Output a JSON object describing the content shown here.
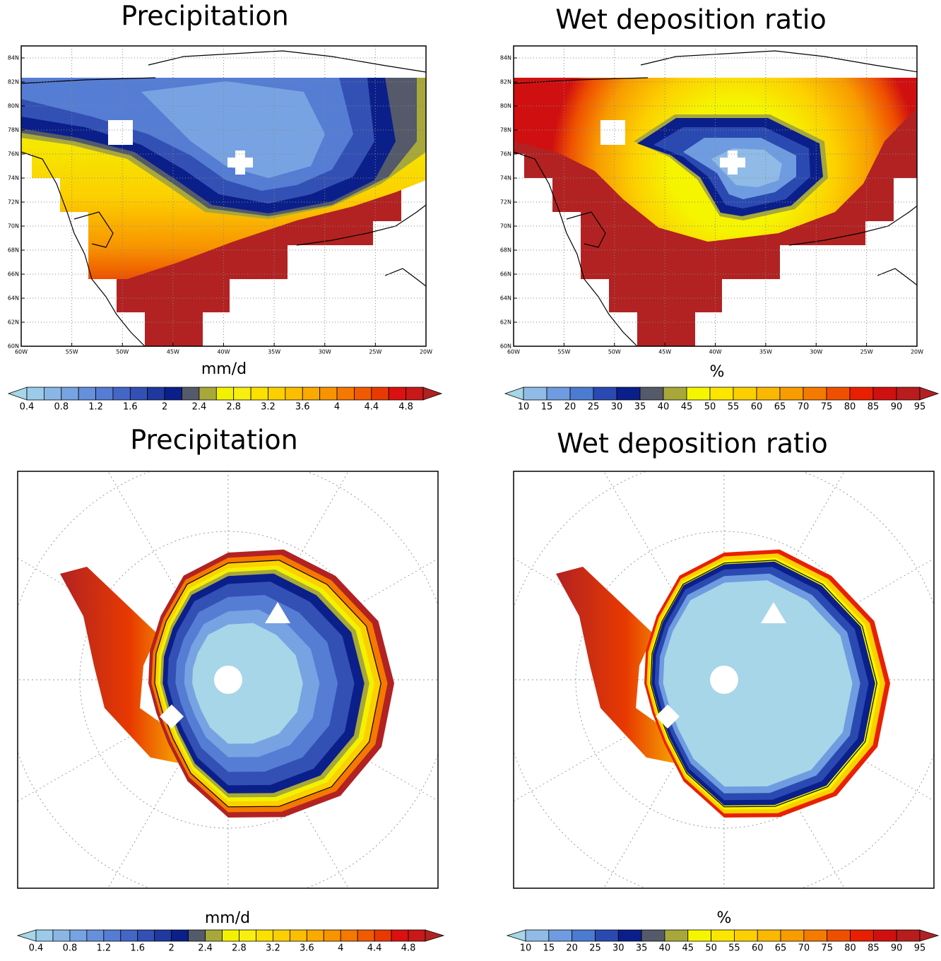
{
  "chart_data": [
    {
      "type": "map",
      "title": "Precipitation",
      "units": "mm/d",
      "xlim": [
        -60,
        -20
      ],
      "ylim": [
        60,
        85
      ],
      "xticks": [
        {
          "value": -60,
          "label": "60W"
        },
        {
          "value": -55,
          "label": "55W"
        },
        {
          "value": -50,
          "label": "50W"
        },
        {
          "value": -45,
          "label": "45W"
        },
        {
          "value": -40,
          "label": "40W"
        },
        {
          "value": -35,
          "label": "35W"
        },
        {
          "value": -30,
          "label": "30W"
        },
        {
          "value": -25,
          "label": "25W"
        },
        {
          "value": -20,
          "label": "20W"
        }
      ],
      "yticks": [
        {
          "value": 60,
          "label": "60N"
        },
        {
          "value": 62,
          "label": "62N"
        },
        {
          "value": 64,
          "label": "64N"
        },
        {
          "value": 66,
          "label": "66N"
        },
        {
          "value": 68,
          "label": "68N"
        },
        {
          "value": 70,
          "label": "70N"
        },
        {
          "value": 72,
          "label": "72N"
        },
        {
          "value": 74,
          "label": "74N"
        },
        {
          "value": 76,
          "label": "76N"
        },
        {
          "value": 78,
          "label": "78N"
        },
        {
          "value": 80,
          "label": "80N"
        },
        {
          "value": 82,
          "label": "82N"
        },
        {
          "value": 84,
          "label": "84N"
        }
      ],
      "grid": true,
      "colorbar": {
        "lim": [
          0.4,
          5.0
        ],
        "ticks": [
          0.4,
          0.8,
          1.2,
          1.6,
          2,
          2.4,
          2.8,
          3.2,
          3.6,
          4,
          4.4,
          4.8
        ],
        "colors": [
          "#a6d6e8",
          "#9ccbe9",
          "#8ab6e6",
          "#78a3e2",
          "#6690dc",
          "#557dd4",
          "#4467c6",
          "#3350b4",
          "#2039a0",
          "#0b1f8a",
          "#545a6a",
          "#a8a83a",
          "#f2f200",
          "#f8ee10",
          "#fbe000",
          "#fcd000",
          "#fcbe00",
          "#fbaa00",
          "#f89400",
          "#f57800",
          "#f05a00",
          "#e83a00",
          "#dc1010",
          "#c81818",
          "#b22222"
        ]
      }
    },
    {
      "type": "map",
      "title": "Wet deposition ratio",
      "units": "%",
      "xlim": [
        -60,
        -20
      ],
      "ylim": [
        60,
        85
      ],
      "xticks": [
        {
          "value": -60,
          "label": "60W"
        },
        {
          "value": -55,
          "label": "55W"
        },
        {
          "value": -50,
          "label": "50W"
        },
        {
          "value": -45,
          "label": "45W"
        },
        {
          "value": -40,
          "label": "40W"
        },
        {
          "value": -35,
          "label": "35W"
        },
        {
          "value": -30,
          "label": "30W"
        },
        {
          "value": -25,
          "label": "25W"
        },
        {
          "value": -20,
          "label": "20W"
        }
      ],
      "yticks": [
        {
          "value": 60,
          "label": "60N"
        },
        {
          "value": 62,
          "label": "62N"
        },
        {
          "value": 64,
          "label": "64N"
        },
        {
          "value": 66,
          "label": "66N"
        },
        {
          "value": 68,
          "label": "68N"
        },
        {
          "value": 70,
          "label": "70N"
        },
        {
          "value": 72,
          "label": "72N"
        },
        {
          "value": 74,
          "label": "74N"
        },
        {
          "value": 76,
          "label": "76N"
        },
        {
          "value": 78,
          "label": "78N"
        },
        {
          "value": 80,
          "label": "80N"
        },
        {
          "value": 82,
          "label": "82N"
        },
        {
          "value": 84,
          "label": "84N"
        }
      ],
      "grid": true,
      "colorbar": {
        "lim": [
          10,
          95
        ],
        "ticks": [
          10,
          15,
          20,
          25,
          30,
          35,
          40,
          45,
          50,
          55,
          60,
          65,
          70,
          75,
          80,
          85,
          90,
          95
        ],
        "colors": [
          "#a6d6e8",
          "#8fbbe6",
          "#6f9ce0",
          "#4c7bd2",
          "#2a4ab2",
          "#0b1f8a",
          "#545a6a",
          "#a8a83a",
          "#f5f500",
          "#fce600",
          "#fcd000",
          "#fbb800",
          "#f89c00",
          "#f57a00",
          "#ef5000",
          "#e82000",
          "#d01010",
          "#b81c1c",
          "#b22222"
        ]
      }
    },
    {
      "type": "polar-map",
      "title": "Precipitation",
      "units": "mm/d",
      "colorbar": {
        "lim": [
          0.4,
          5.0
        ],
        "ticks": [
          0.4,
          0.8,
          1.2,
          1.6,
          2,
          2.4,
          2.8,
          3.2,
          3.6,
          4,
          4.4,
          4.8
        ],
        "colors": [
          "#a6d6e8",
          "#9ccbe9",
          "#8ab6e6",
          "#78a3e2",
          "#6690dc",
          "#557dd4",
          "#4467c6",
          "#3350b4",
          "#2039a0",
          "#0b1f8a",
          "#545a6a",
          "#a8a83a",
          "#f2f200",
          "#f8ee10",
          "#fbe000",
          "#fcd000",
          "#fcbe00",
          "#fbaa00",
          "#f89400",
          "#f57800",
          "#f05a00",
          "#e83a00",
          "#dc1010",
          "#c81818",
          "#b22222"
        ]
      }
    },
    {
      "type": "polar-map",
      "title": "Wet deposition ratio",
      "units": "%",
      "colorbar": {
        "lim": [
          10,
          95
        ],
        "ticks": [
          10,
          15,
          20,
          25,
          30,
          35,
          40,
          45,
          50,
          55,
          60,
          65,
          70,
          75,
          80,
          85,
          90,
          95
        ],
        "colors": [
          "#a6d6e8",
          "#8fbbe6",
          "#6f9ce0",
          "#4c7bd2",
          "#2a4ab2",
          "#0b1f8a",
          "#545a6a",
          "#a8a83a",
          "#f5f500",
          "#fce600",
          "#fcd000",
          "#fbb800",
          "#f89c00",
          "#f57a00",
          "#ef5000",
          "#e82000",
          "#d01010",
          "#b81c1c",
          "#b22222"
        ]
      }
    }
  ]
}
